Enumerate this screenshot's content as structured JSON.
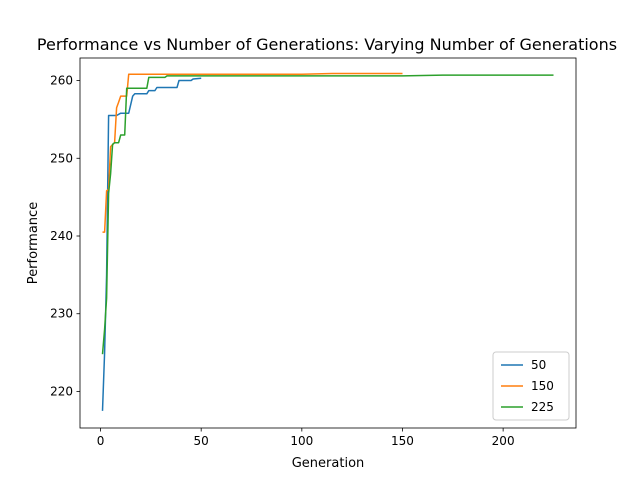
{
  "chart_data": {
    "type": "line",
    "title": "Performance vs Number of Generations: Varying Number of Generations",
    "xlabel": "Generation",
    "ylabel": "Performance",
    "xlim": [
      -10.2,
      236.2
    ],
    "ylim": [
      215.3,
      262.9
    ],
    "xticks": [
      0,
      50,
      100,
      150,
      200
    ],
    "yticks": [
      220,
      230,
      240,
      250,
      260
    ],
    "grid": false,
    "legend_position": "lower right",
    "series": [
      {
        "name": "50",
        "color": "#1f77b4",
        "points": [
          [
            1,
            217.5
          ],
          [
            2,
            225
          ],
          [
            3,
            235
          ],
          [
            4,
            255.5
          ],
          [
            8,
            255.5
          ],
          [
            10,
            255.8
          ],
          [
            14,
            255.8
          ],
          [
            16,
            258
          ],
          [
            17,
            258.3
          ],
          [
            23,
            258.3
          ],
          [
            24,
            258.7
          ],
          [
            27,
            258.7
          ],
          [
            28,
            259.1
          ],
          [
            38,
            259.1
          ],
          [
            39,
            260
          ],
          [
            45,
            260
          ],
          [
            46,
            260.2
          ],
          [
            50,
            260.3
          ]
        ]
      },
      {
        "name": "150",
        "color": "#ff7f0e",
        "points": [
          [
            1,
            240.5
          ],
          [
            2,
            240.5
          ],
          [
            3,
            245.8
          ],
          [
            4,
            246
          ],
          [
            5,
            251.5
          ],
          [
            7,
            252
          ],
          [
            8,
            256.5
          ],
          [
            9,
            257.2
          ],
          [
            10,
            258
          ],
          [
            13,
            258
          ],
          [
            14,
            260.8
          ],
          [
            40,
            260.8
          ],
          [
            100,
            260.8
          ],
          [
            115,
            260.9
          ],
          [
            150,
            260.9
          ]
        ]
      },
      {
        "name": "225",
        "color": "#2ca02c",
        "points": [
          [
            1,
            224.8
          ],
          [
            2,
            228
          ],
          [
            3,
            232
          ],
          [
            4,
            245.5
          ],
          [
            5,
            248
          ],
          [
            6,
            251.8
          ],
          [
            7,
            252
          ],
          [
            9,
            252
          ],
          [
            10,
            253
          ],
          [
            12,
            253
          ],
          [
            13,
            259
          ],
          [
            23,
            259
          ],
          [
            24,
            260.4
          ],
          [
            32,
            260.4
          ],
          [
            33,
            260.6
          ],
          [
            60,
            260.6
          ],
          [
            150,
            260.6
          ],
          [
            170,
            260.7
          ],
          [
            225,
            260.7
          ]
        ]
      }
    ]
  }
}
